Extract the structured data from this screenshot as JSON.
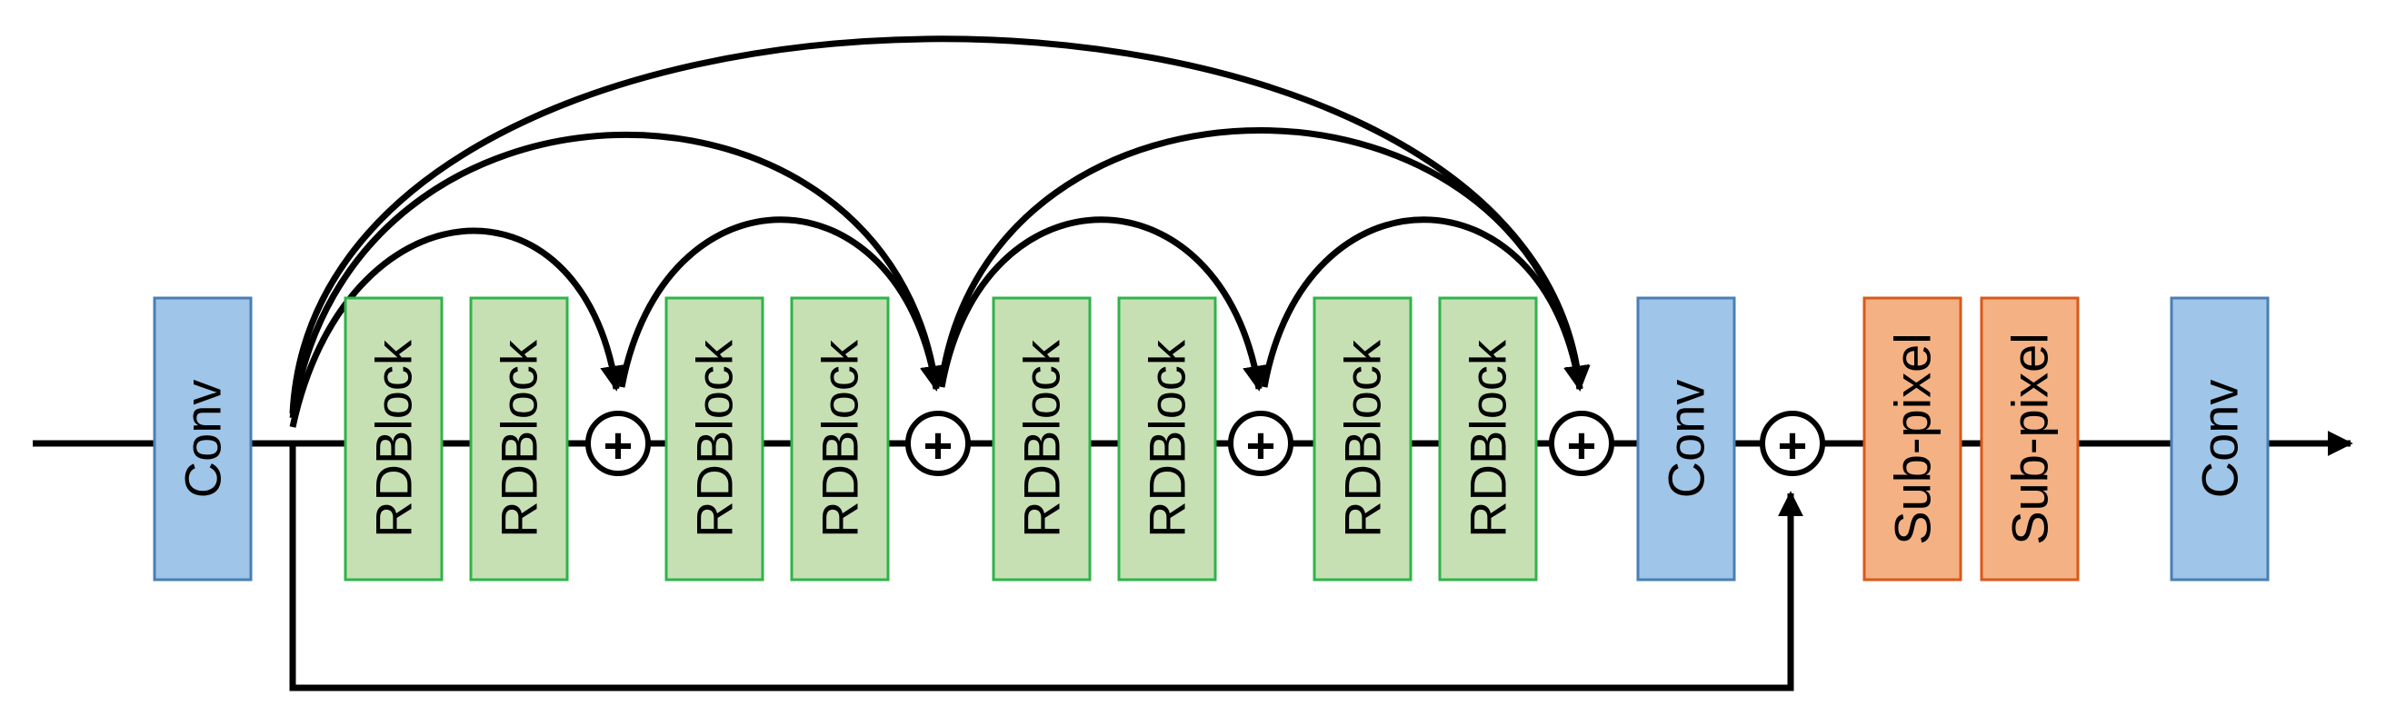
{
  "blocks": [
    {
      "kind": "conv",
      "label": "Conv"
    },
    {
      "kind": "rdb",
      "label": "RDBlock"
    },
    {
      "kind": "rdb",
      "label": "RDBlock"
    },
    {
      "kind": "rdb",
      "label": "RDBlock"
    },
    {
      "kind": "rdb",
      "label": "RDBlock"
    },
    {
      "kind": "rdb",
      "label": "RDBlock"
    },
    {
      "kind": "rdb",
      "label": "RDBlock"
    },
    {
      "kind": "rdb",
      "label": "RDBlock"
    },
    {
      "kind": "rdb",
      "label": "RDBlock"
    },
    {
      "kind": "conv",
      "label": "Conv"
    },
    {
      "kind": "subpixel",
      "label": "Sub-pixel"
    },
    {
      "kind": "subpixel",
      "label": "Sub-pixel"
    },
    {
      "kind": "conv",
      "label": "Conv"
    }
  ],
  "adders": [
    {
      "symbol": "+"
    },
    {
      "symbol": "+"
    },
    {
      "symbol": "+"
    },
    {
      "symbol": "+"
    },
    {
      "symbol": "+"
    }
  ],
  "colors": {
    "conv_fill": "#9fc5e8",
    "conv_stroke": "#4a7fb5",
    "rdb_fill": "#c6e0b4",
    "rdb_stroke": "#2fb34a",
    "subpixel_fill": "#f4b183",
    "subpixel_stroke": "#d9581b",
    "line": "#000000"
  }
}
